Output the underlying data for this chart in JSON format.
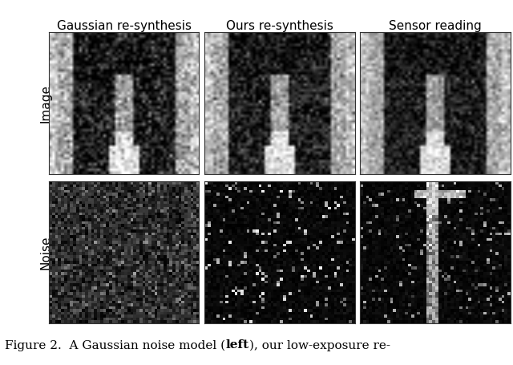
{
  "title_texts": [
    "Gaussian re-synthesis",
    "Ours re-synthesis",
    "Sensor reading"
  ],
  "row_labels": [
    "Image",
    "Noise"
  ],
  "caption_pre": "Figure 2.  A Gaussian noise model (",
  "caption_bold": "left",
  "caption_post": "), our low-exposure re-",
  "figure_bg": "#ffffff",
  "title_fontsize": 11,
  "label_fontsize": 11,
  "caption_fontsize": 11
}
